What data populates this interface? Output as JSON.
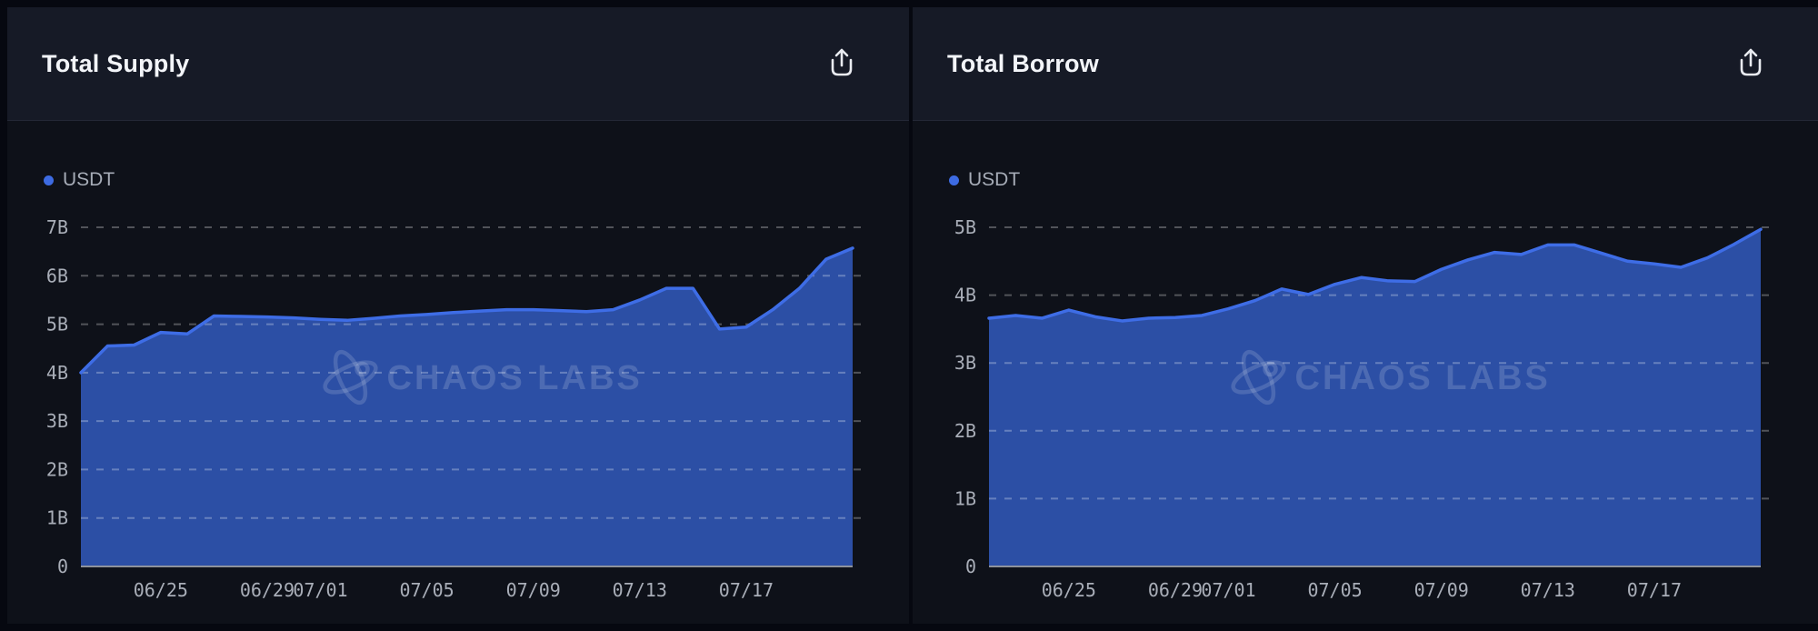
{
  "page_bg": "#060810",
  "watermark": {
    "text": "CHAOS LABS",
    "icon": "chaos-labs-orbit-icon"
  },
  "panels": [
    {
      "title": "Total Supply",
      "export_icon": "share-export-icon",
      "legend": {
        "label": "USDT",
        "dot_color": "#3d6be2"
      }
    },
    {
      "title": "Total Borrow",
      "export_icon": "share-export-icon",
      "legend": {
        "label": "USDT",
        "dot_color": "#3d6be2"
      }
    }
  ],
  "chart_data": [
    {
      "type": "area",
      "title": "Total Supply",
      "xlabel": "",
      "ylabel": "",
      "x": [
        "06/22",
        "06/23",
        "06/24",
        "06/25",
        "06/26",
        "06/27",
        "06/28",
        "06/29",
        "06/30",
        "07/01",
        "07/02",
        "07/03",
        "07/04",
        "07/05",
        "07/06",
        "07/07",
        "07/08",
        "07/09",
        "07/10",
        "07/11",
        "07/12",
        "07/13",
        "07/14",
        "07/15",
        "07/16",
        "07/17",
        "07/18",
        "07/19",
        "07/20",
        "07/21"
      ],
      "series": [
        {
          "name": "USDT",
          "values": [
            4.0,
            4.55,
            4.57,
            4.83,
            4.8,
            5.17,
            5.16,
            5.15,
            5.13,
            5.1,
            5.08,
            5.12,
            5.17,
            5.2,
            5.24,
            5.27,
            5.3,
            5.3,
            5.28,
            5.26,
            5.3,
            5.5,
            5.74,
            5.74,
            4.9,
            4.94,
            5.3,
            5.74,
            6.34,
            6.57
          ]
        }
      ],
      "unit": "B",
      "ylim": [
        0,
        7
      ],
      "ytick_labels": [
        "0",
        "1B",
        "2B",
        "3B",
        "4B",
        "5B",
        "6B",
        "7B"
      ],
      "xticks": [
        {
          "label": "06/25",
          "index": 3
        },
        {
          "label": "06/29",
          "index": 7
        },
        {
          "label": "07/01",
          "index": 9
        },
        {
          "label": "07/05",
          "index": 13
        },
        {
          "label": "07/09",
          "index": 17
        },
        {
          "label": "07/13",
          "index": 21
        },
        {
          "label": "07/17",
          "index": 25
        }
      ],
      "grid": "dashed-horizontal",
      "legend_position": "top-left",
      "colors": {
        "line": "#3e6de6",
        "fill": "#2c4fa5",
        "grid": "rgba(255,255,255,0.28)",
        "axis_line": "#8e929b"
      }
    },
    {
      "type": "area",
      "title": "Total Borrow",
      "xlabel": "",
      "ylabel": "",
      "x": [
        "06/22",
        "06/23",
        "06/24",
        "06/25",
        "06/26",
        "06/27",
        "06/28",
        "06/29",
        "06/30",
        "07/01",
        "07/02",
        "07/03",
        "07/04",
        "07/05",
        "07/06",
        "07/07",
        "07/08",
        "07/09",
        "07/10",
        "07/11",
        "07/12",
        "07/13",
        "07/14",
        "07/15",
        "07/16",
        "07/17",
        "07/18",
        "07/19",
        "07/20",
        "07/21"
      ],
      "series": [
        {
          "name": "USDT",
          "values": [
            3.66,
            3.7,
            3.66,
            3.78,
            3.68,
            3.62,
            3.66,
            3.67,
            3.7,
            3.8,
            3.92,
            4.09,
            4.01,
            4.16,
            4.26,
            4.21,
            4.2,
            4.38,
            4.52,
            4.63,
            4.6,
            4.74,
            4.74,
            4.62,
            4.5,
            4.46,
            4.41,
            4.55,
            4.75,
            4.97
          ]
        }
      ],
      "unit": "B",
      "ylim": [
        0,
        5
      ],
      "ytick_labels": [
        "0",
        "1B",
        "2B",
        "3B",
        "4B",
        "5B"
      ],
      "xticks": [
        {
          "label": "06/25",
          "index": 3
        },
        {
          "label": "06/29",
          "index": 7
        },
        {
          "label": "07/01",
          "index": 9
        },
        {
          "label": "07/05",
          "index": 13
        },
        {
          "label": "07/09",
          "index": 17
        },
        {
          "label": "07/13",
          "index": 21
        },
        {
          "label": "07/17",
          "index": 25
        }
      ],
      "grid": "dashed-horizontal",
      "legend_position": "top-left",
      "colors": {
        "line": "#3e6de6",
        "fill": "#2c4fa5",
        "grid": "rgba(255,255,255,0.28)",
        "axis_line": "#8e929b"
      }
    }
  ]
}
